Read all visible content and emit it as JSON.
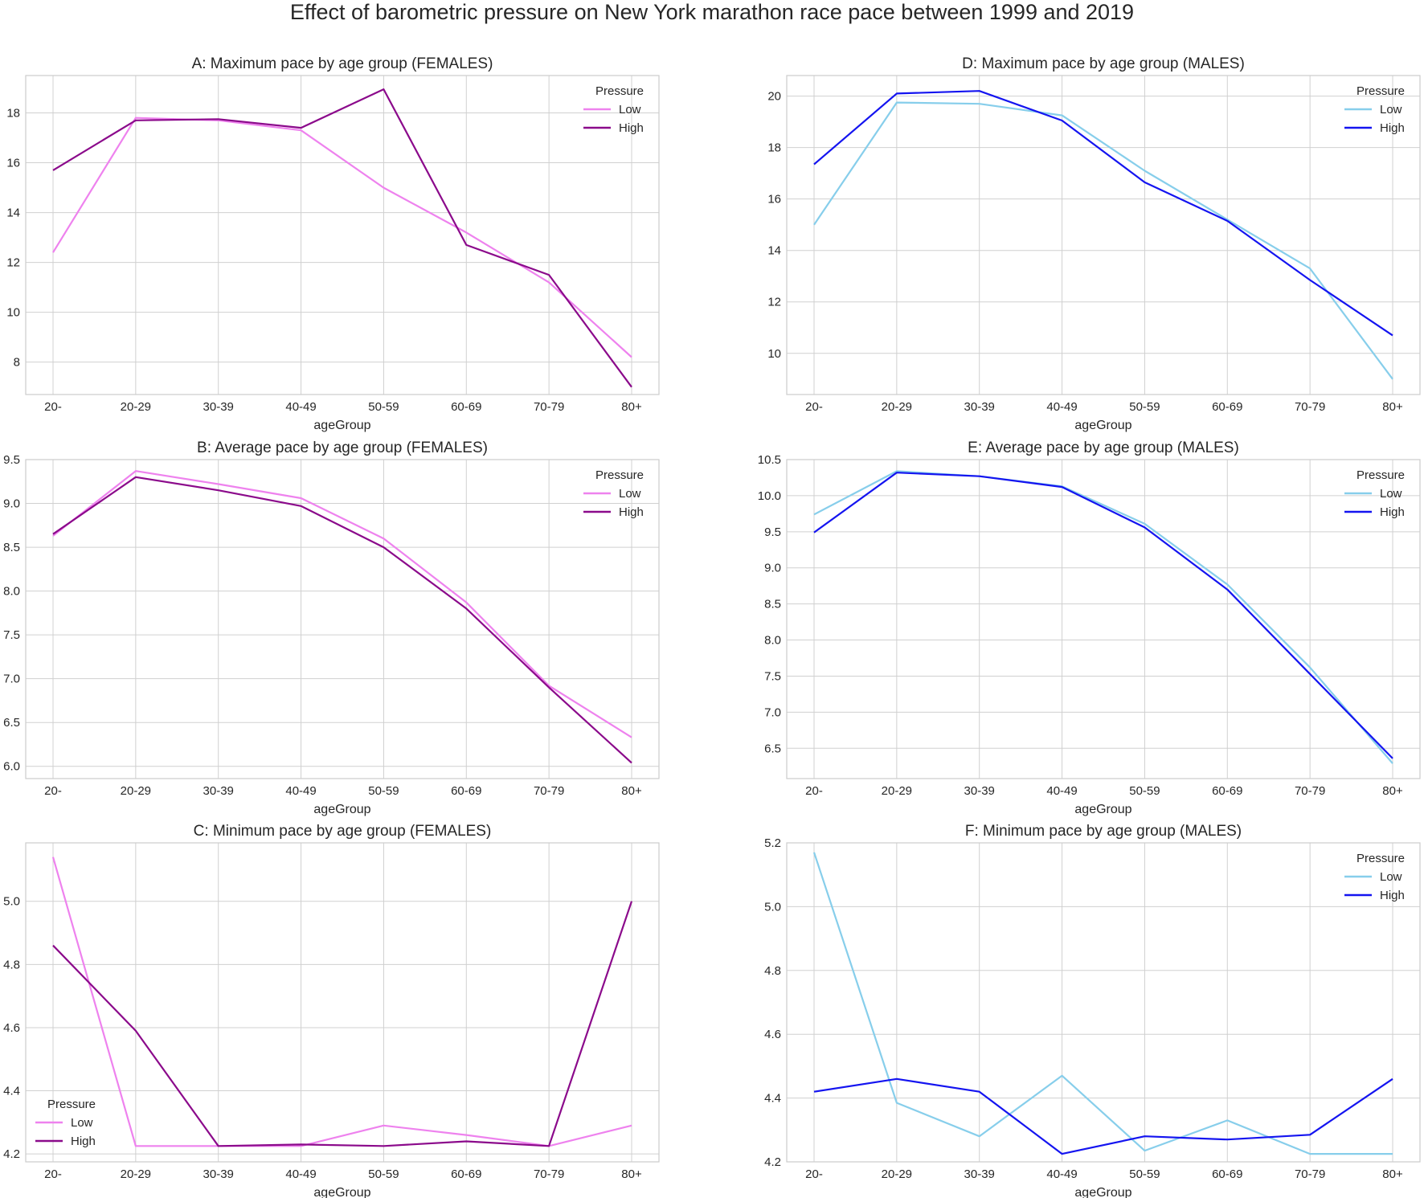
{
  "figure": {
    "title": "Effect of barometric pressure on New York marathon race pace between 1999 and 2019"
  },
  "colors": {
    "female_low": "#ee82ee",
    "female_high": "#8b0a8b",
    "male_low": "#87ceeb",
    "male_high": "#1414f0",
    "grid": "#d0d0d0",
    "axes": "#cccccc"
  },
  "chart_data": [
    {
      "id": "A",
      "type": "line",
      "title": "A: Maximum pace by age group (FEMALES)",
      "xlabel": "ageGroup",
      "ylabel": "",
      "categories": [
        "20-",
        "20-29",
        "30-39",
        "40-49",
        "50-59",
        "60-69",
        "70-79",
        "80+"
      ],
      "ylim": [
        6.7,
        19.5
      ],
      "yticks": [
        8,
        10,
        12,
        14,
        16,
        18
      ],
      "ytick_labels": [
        "8",
        "10",
        "12",
        "14",
        "16",
        "18"
      ],
      "legend": {
        "title": "Pressure",
        "position": "upper-right"
      },
      "series": [
        {
          "name": "Low",
          "color_key": "female_low",
          "values": [
            12.4,
            17.8,
            17.7,
            17.3,
            15.0,
            13.2,
            11.2,
            8.2
          ]
        },
        {
          "name": "High",
          "color_key": "female_high",
          "values": [
            15.7,
            17.7,
            17.75,
            17.4,
            18.95,
            12.7,
            11.5,
            7.0
          ]
        }
      ]
    },
    {
      "id": "D",
      "type": "line",
      "title": "D: Maximum pace by age group (MALES)",
      "xlabel": "ageGroup",
      "ylabel": "",
      "categories": [
        "20-",
        "20-29",
        "30-39",
        "40-49",
        "50-59",
        "60-69",
        "70-79",
        "80+"
      ],
      "ylim": [
        8.4,
        20.8
      ],
      "yticks": [
        10,
        12,
        14,
        16,
        18,
        20
      ],
      "ytick_labels": [
        "10",
        "12",
        "14",
        "16",
        "18",
        "20"
      ],
      "legend": {
        "title": "Pressure",
        "position": "upper-right"
      },
      "series": [
        {
          "name": "Low",
          "color_key": "male_low",
          "values": [
            15.0,
            19.75,
            19.7,
            19.25,
            17.1,
            15.2,
            13.3,
            9.0
          ]
        },
        {
          "name": "High",
          "color_key": "male_high",
          "values": [
            17.35,
            20.1,
            20.2,
            19.05,
            16.65,
            15.15,
            12.85,
            10.7
          ]
        }
      ]
    },
    {
      "id": "B",
      "type": "line",
      "title": "B: Average pace by age group (FEMALES)",
      "xlabel": "ageGroup",
      "ylabel": "",
      "categories": [
        "20-",
        "20-29",
        "30-39",
        "40-49",
        "50-59",
        "60-69",
        "70-79",
        "80+"
      ],
      "ylim": [
        5.86,
        9.5
      ],
      "yticks": [
        6.0,
        6.5,
        7.0,
        7.5,
        8.0,
        8.5,
        9.0,
        9.5
      ],
      "ytick_labels": [
        "6.0",
        "6.5",
        "7.0",
        "7.5",
        "8.0",
        "8.5",
        "9.0",
        "9.5"
      ],
      "legend": {
        "title": "Pressure",
        "position": "upper-right"
      },
      "series": [
        {
          "name": "Low",
          "color_key": "female_low",
          "values": [
            8.63,
            9.37,
            9.22,
            9.06,
            8.6,
            7.87,
            6.92,
            6.33
          ]
        },
        {
          "name": "High",
          "color_key": "female_high",
          "values": [
            8.65,
            9.3,
            9.15,
            8.97,
            8.5,
            7.8,
            6.9,
            6.04
          ]
        }
      ]
    },
    {
      "id": "E",
      "type": "line",
      "title": "E: Average pace by age group (MALES)",
      "xlabel": "ageGroup",
      "ylabel": "",
      "categories": [
        "20-",
        "20-29",
        "30-39",
        "40-49",
        "50-59",
        "60-69",
        "70-79",
        "80+"
      ],
      "ylim": [
        6.08,
        10.5
      ],
      "yticks": [
        6.5,
        7.0,
        7.5,
        8.0,
        8.5,
        9.0,
        9.5,
        10.0,
        10.5
      ],
      "ytick_labels": [
        "6.5",
        "7.0",
        "7.5",
        "8.0",
        "8.5",
        "9.0",
        "9.5",
        "10.0",
        "10.5"
      ],
      "legend": {
        "title": "Pressure",
        "position": "upper-right"
      },
      "series": [
        {
          "name": "Low",
          "color_key": "male_low",
          "values": [
            9.74,
            10.34,
            10.27,
            10.13,
            9.61,
            8.77,
            7.62,
            6.29
          ]
        },
        {
          "name": "High",
          "color_key": "male_high",
          "values": [
            9.49,
            10.32,
            10.27,
            10.12,
            9.56,
            8.7,
            7.53,
            6.36
          ]
        }
      ]
    },
    {
      "id": "C",
      "type": "line",
      "title": "C: Minimum pace by age group (FEMALES)",
      "xlabel": "ageGroup",
      "ylabel": "",
      "categories": [
        "20-",
        "20-29",
        "30-39",
        "40-49",
        "50-59",
        "60-69",
        "70-79",
        "80+"
      ],
      "ylim": [
        4.175,
        5.185
      ],
      "yticks": [
        4.2,
        4.4,
        4.6,
        4.8,
        5.0
      ],
      "ytick_labels": [
        "4.2",
        "4.4",
        "4.6",
        "4.8",
        "5.0"
      ],
      "legend": {
        "title": "Pressure",
        "position": "lower-left"
      },
      "series": [
        {
          "name": "Low",
          "color_key": "female_low",
          "values": [
            5.14,
            4.225,
            4.225,
            4.225,
            4.29,
            4.26,
            4.225,
            4.29
          ]
        },
        {
          "name": "High",
          "color_key": "female_high",
          "values": [
            4.86,
            4.59,
            4.225,
            4.23,
            4.225,
            4.24,
            4.225,
            5.0
          ]
        }
      ]
    },
    {
      "id": "F",
      "type": "line",
      "title": "F: Minimum pace by age group (MALES)",
      "xlabel": "ageGroup",
      "ylabel": "",
      "categories": [
        "20-",
        "20-29",
        "30-39",
        "40-49",
        "50-59",
        "60-69",
        "70-79",
        "80+"
      ],
      "ylim": [
        4.2,
        5.2
      ],
      "yticks": [
        4.2,
        4.4,
        4.6,
        4.8,
        5.0,
        5.2
      ],
      "ytick_labels": [
        "4.2",
        "4.4",
        "4.6",
        "4.8",
        "5.0",
        "5.2"
      ],
      "legend": {
        "title": "Pressure",
        "position": "upper-right"
      },
      "series": [
        {
          "name": "Low",
          "color_key": "male_low",
          "values": [
            5.17,
            4.385,
            4.28,
            4.47,
            4.235,
            4.33,
            4.225,
            4.225
          ]
        },
        {
          "name": "High",
          "color_key": "male_high",
          "values": [
            4.42,
            4.46,
            4.42,
            4.225,
            4.28,
            4.27,
            4.285,
            4.46
          ]
        }
      ]
    }
  ]
}
